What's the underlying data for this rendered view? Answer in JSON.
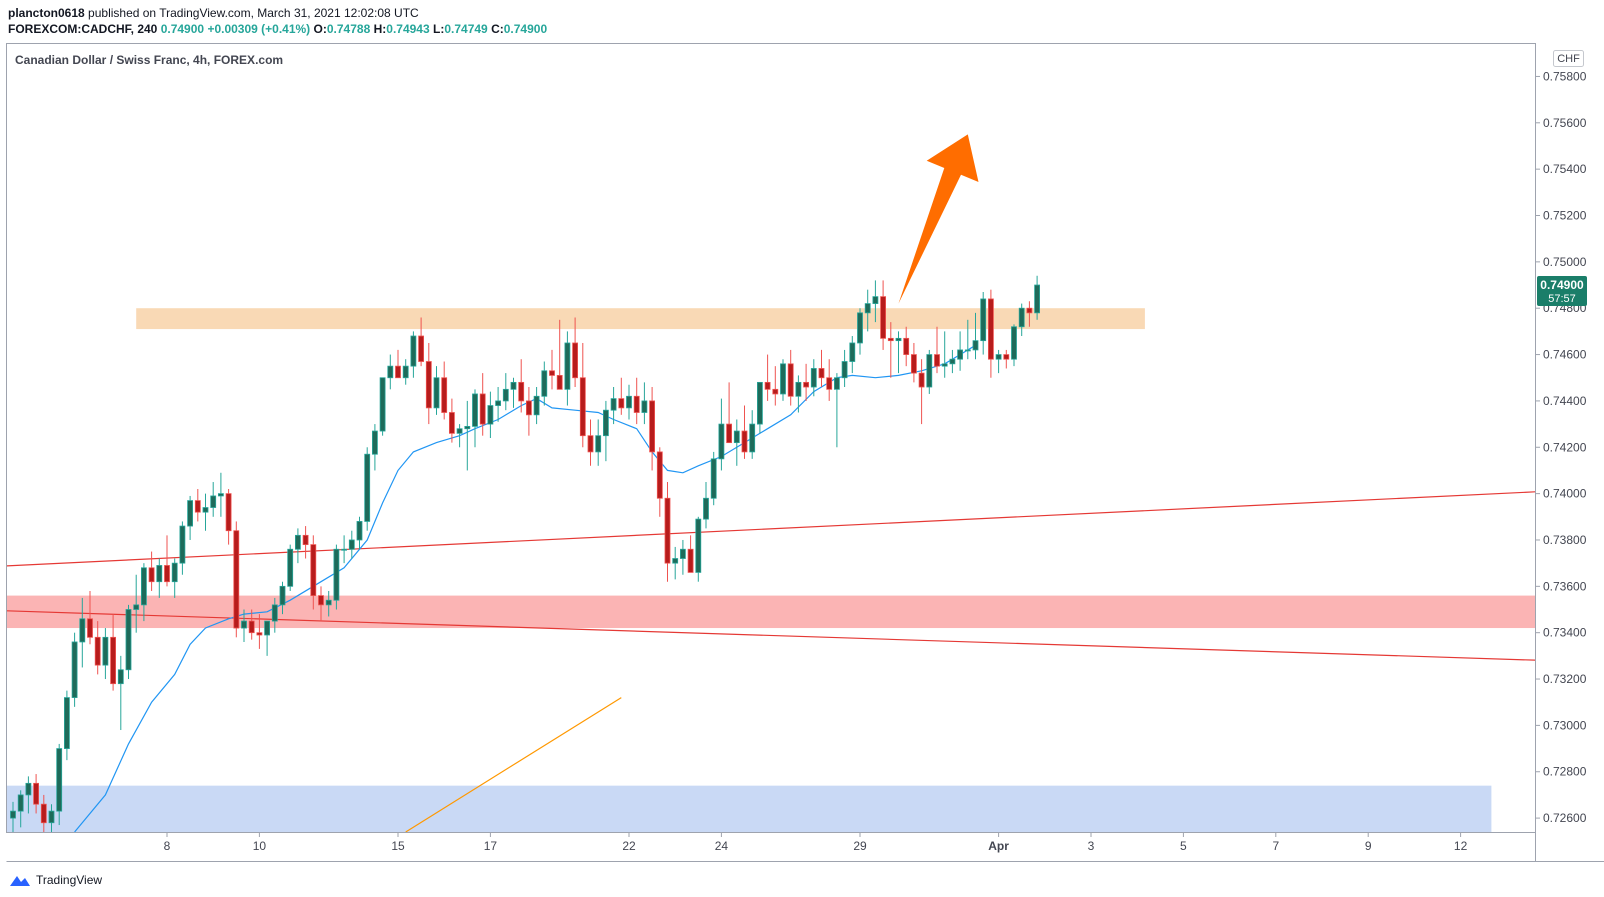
{
  "header": {
    "author": "plancton0618",
    "published_text": "published on TradingView.com, March 31, 2021 12:02:08 UTC",
    "symbol": "FOREXCOM:CADCHF, 240",
    "last": "0.74900",
    "change": "+0.00309 (+0.41%)",
    "o_label": "O:",
    "o_value": "0.74788",
    "h_label": "H:",
    "h_value": "0.74943",
    "l_label": "L:",
    "l_value": "0.74749",
    "c_label": "C:",
    "c_value": "0.74900"
  },
  "footer": {
    "brand": "TradingView"
  },
  "colors": {
    "up": "#26a69a",
    "down": "#ef5350",
    "candle_body_up": "#1e6b5a",
    "candle_body_down": "#b71c1c",
    "ma": "#2196f3",
    "resistance_zone": "#f9d9b5",
    "support_zone": "#fbb4b4",
    "demand_zone": "#c9d9f5",
    "trend_line": "#e53935",
    "orange_line": "#ff9800",
    "arrow": "#ff6d00",
    "price_badge": "#1a7e69"
  },
  "chart_data": {
    "type": "candlestick",
    "title": "Canadian Dollar / Swiss Franc, 4h, FOREX.com",
    "currency": "CHF",
    "ylim": [
      0.7254,
      0.7594
    ],
    "y_ticks": [
      "0.75800",
      "0.75600",
      "0.75400",
      "0.75200",
      "0.75000",
      "0.74800",
      "0.74600",
      "0.74400",
      "0.74200",
      "0.74000",
      "0.73800",
      "0.73600",
      "0.73400",
      "0.73200",
      "0.73000",
      "0.72800",
      "0.72600"
    ],
    "x_ticks": [
      {
        "label": "8",
        "bar": 20
      },
      {
        "label": "10",
        "bar": 32
      },
      {
        "label": "15",
        "bar": 50
      },
      {
        "label": "17",
        "bar": 62
      },
      {
        "label": "22",
        "bar": 80
      },
      {
        "label": "24",
        "bar": 92
      },
      {
        "label": "29",
        "bar": 110
      },
      {
        "label": "Apr",
        "bar": 128
      },
      {
        "label": "3",
        "bar": 140
      },
      {
        "label": "5",
        "bar": 152
      },
      {
        "label": "7",
        "bar": 164
      },
      {
        "label": "9",
        "bar": 176
      },
      {
        "label": "12",
        "bar": 188
      }
    ],
    "last_price": "0.74900",
    "countdown": "57:57",
    "candles": [
      [
        0.726,
        0.7267,
        0.7253,
        0.7263
      ],
      [
        0.7263,
        0.7272,
        0.7256,
        0.727
      ],
      [
        0.727,
        0.7278,
        0.7262,
        0.7275
      ],
      [
        0.7275,
        0.7279,
        0.7262,
        0.7266
      ],
      [
        0.7266,
        0.727,
        0.7254,
        0.7258
      ],
      [
        0.7258,
        0.7266,
        0.7254,
        0.7263
      ],
      [
        0.7263,
        0.7292,
        0.7257,
        0.729
      ],
      [
        0.729,
        0.7315,
        0.7285,
        0.7312
      ],
      [
        0.7312,
        0.734,
        0.7308,
        0.7336
      ],
      [
        0.7336,
        0.7355,
        0.7325,
        0.7346
      ],
      [
        0.7346,
        0.7358,
        0.7335,
        0.7338
      ],
      [
        0.7338,
        0.7345,
        0.7322,
        0.7326
      ],
      [
        0.7326,
        0.7342,
        0.732,
        0.7338
      ],
      [
        0.7338,
        0.7348,
        0.7315,
        0.7318
      ],
      [
        0.7318,
        0.733,
        0.7298,
        0.7324
      ],
      [
        0.7324,
        0.7352,
        0.732,
        0.735
      ],
      [
        0.735,
        0.7365,
        0.734,
        0.7352
      ],
      [
        0.7352,
        0.737,
        0.7345,
        0.7368
      ],
      [
        0.7368,
        0.7375,
        0.7358,
        0.7362
      ],
      [
        0.7362,
        0.7372,
        0.7355,
        0.7369
      ],
      [
        0.7369,
        0.7382,
        0.736,
        0.7362
      ],
      [
        0.7362,
        0.7372,
        0.7355,
        0.737
      ],
      [
        0.737,
        0.7388,
        0.7365,
        0.7386
      ],
      [
        0.7386,
        0.7399,
        0.738,
        0.7397
      ],
      [
        0.7397,
        0.7402,
        0.7388,
        0.7392
      ],
      [
        0.7392,
        0.74,
        0.7384,
        0.7394
      ],
      [
        0.7394,
        0.7405,
        0.739,
        0.7399
      ],
      [
        0.7399,
        0.7409,
        0.739,
        0.74
      ],
      [
        0.74,
        0.7402,
        0.7378,
        0.7384
      ],
      [
        0.7384,
        0.7388,
        0.7338,
        0.7342
      ],
      [
        0.7342,
        0.735,
        0.7336,
        0.7345
      ],
      [
        0.7345,
        0.735,
        0.7337,
        0.734
      ],
      [
        0.734,
        0.7348,
        0.7333,
        0.7339
      ],
      [
        0.7339,
        0.7345,
        0.733,
        0.7345
      ],
      [
        0.7345,
        0.7355,
        0.734,
        0.7352
      ],
      [
        0.7352,
        0.7362,
        0.7348,
        0.736
      ],
      [
        0.736,
        0.7378,
        0.7358,
        0.7376
      ],
      [
        0.7376,
        0.7385,
        0.737,
        0.7382
      ],
      [
        0.7382,
        0.7386,
        0.7372,
        0.7378
      ],
      [
        0.7378,
        0.7382,
        0.735,
        0.7356
      ],
      [
        0.7356,
        0.736,
        0.7345,
        0.7352
      ],
      [
        0.7352,
        0.7358,
        0.7347,
        0.7354
      ],
      [
        0.7354,
        0.7378,
        0.735,
        0.7376
      ],
      [
        0.7376,
        0.7382,
        0.737,
        0.7376
      ],
      [
        0.7376,
        0.7384,
        0.7372,
        0.738
      ],
      [
        0.738,
        0.739,
        0.7376,
        0.7388
      ],
      [
        0.7388,
        0.742,
        0.7384,
        0.7417
      ],
      [
        0.7417,
        0.743,
        0.741,
        0.7427
      ],
      [
        0.7427,
        0.745,
        0.7425,
        0.745
      ],
      [
        0.745,
        0.746,
        0.7445,
        0.7455
      ],
      [
        0.7455,
        0.7462,
        0.745,
        0.745
      ],
      [
        0.745,
        0.7458,
        0.7447,
        0.7455
      ],
      [
        0.7455,
        0.747,
        0.745,
        0.7468
      ],
      [
        0.7468,
        0.7476,
        0.7455,
        0.7457
      ],
      [
        0.7457,
        0.7465,
        0.743,
        0.7437
      ],
      [
        0.7437,
        0.7455,
        0.7434,
        0.745
      ],
      [
        0.745,
        0.7457,
        0.7432,
        0.7435
      ],
      [
        0.7435,
        0.7441,
        0.7422,
        0.7426
      ],
      [
        0.7426,
        0.743,
        0.742,
        0.7428
      ],
      [
        0.7428,
        0.744,
        0.741,
        0.7429
      ],
      [
        0.7429,
        0.7445,
        0.742,
        0.7443
      ],
      [
        0.7443,
        0.7452,
        0.7425,
        0.743
      ],
      [
        0.743,
        0.7444,
        0.7424,
        0.7438
      ],
      [
        0.7438,
        0.7446,
        0.7431,
        0.744
      ],
      [
        0.744,
        0.7452,
        0.7436,
        0.7445
      ],
      [
        0.7445,
        0.745,
        0.7437,
        0.7448
      ],
      [
        0.7448,
        0.7458,
        0.7435,
        0.744
      ],
      [
        0.744,
        0.7446,
        0.7425,
        0.7434
      ],
      [
        0.7434,
        0.7446,
        0.743,
        0.7442
      ],
      [
        0.7442,
        0.7457,
        0.7438,
        0.7453
      ],
      [
        0.7453,
        0.7462,
        0.7445,
        0.7451
      ],
      [
        0.7451,
        0.7475,
        0.7446,
        0.7445
      ],
      [
        0.7445,
        0.747,
        0.7438,
        0.7465
      ],
      [
        0.7465,
        0.7476,
        0.7446,
        0.745
      ],
      [
        0.745,
        0.7465,
        0.742,
        0.7425
      ],
      [
        0.7425,
        0.7432,
        0.7412,
        0.7418
      ],
      [
        0.7418,
        0.7432,
        0.7412,
        0.7425
      ],
      [
        0.7425,
        0.744,
        0.7414,
        0.7436
      ],
      [
        0.7436,
        0.7446,
        0.743,
        0.7441
      ],
      [
        0.7441,
        0.745,
        0.7434,
        0.7437
      ],
      [
        0.7437,
        0.7447,
        0.7432,
        0.7442
      ],
      [
        0.7442,
        0.745,
        0.743,
        0.7435
      ],
      [
        0.7435,
        0.7448,
        0.743,
        0.744
      ],
      [
        0.744,
        0.7446,
        0.741,
        0.7418
      ],
      [
        0.7418,
        0.742,
        0.739,
        0.7398
      ],
      [
        0.7398,
        0.7405,
        0.7362,
        0.737
      ],
      [
        0.737,
        0.7377,
        0.7363,
        0.7372
      ],
      [
        0.7372,
        0.738,
        0.7365,
        0.7376
      ],
      [
        0.7376,
        0.7382,
        0.7369,
        0.7366
      ],
      [
        0.7366,
        0.739,
        0.7362,
        0.7389
      ],
      [
        0.7389,
        0.7405,
        0.7385,
        0.7398
      ],
      [
        0.7398,
        0.7418,
        0.7395,
        0.7415
      ],
      [
        0.7415,
        0.7441,
        0.741,
        0.743
      ],
      [
        0.743,
        0.7448,
        0.7425,
        0.7422
      ],
      [
        0.7422,
        0.7432,
        0.7412,
        0.7427
      ],
      [
        0.7427,
        0.7438,
        0.7415,
        0.7418
      ],
      [
        0.7418,
        0.7436,
        0.7415,
        0.743
      ],
      [
        0.743,
        0.7448,
        0.7426,
        0.7448
      ],
      [
        0.7448,
        0.746,
        0.744,
        0.7445
      ],
      [
        0.7445,
        0.7455,
        0.7438,
        0.7443
      ],
      [
        0.7443,
        0.7458,
        0.744,
        0.7456
      ],
      [
        0.7456,
        0.7462,
        0.7438,
        0.7442
      ],
      [
        0.7442,
        0.7451,
        0.7435,
        0.7448
      ],
      [
        0.7448,
        0.7456,
        0.744,
        0.7446
      ],
      [
        0.7446,
        0.7458,
        0.7442,
        0.7454
      ],
      [
        0.7454,
        0.7462,
        0.7446,
        0.745
      ],
      [
        0.745,
        0.7458,
        0.744,
        0.7445
      ],
      [
        0.7445,
        0.7452,
        0.742,
        0.745
      ],
      [
        0.745,
        0.7462,
        0.7446,
        0.7457
      ],
      [
        0.7457,
        0.7468,
        0.7452,
        0.7465
      ],
      [
        0.7465,
        0.748,
        0.746,
        0.7478
      ],
      [
        0.7478,
        0.7488,
        0.747,
        0.7482
      ],
      [
        0.7482,
        0.7492,
        0.7474,
        0.7485
      ],
      [
        0.7485,
        0.7492,
        0.7462,
        0.7467
      ],
      [
        0.7467,
        0.7474,
        0.745,
        0.7466
      ],
      [
        0.7466,
        0.747,
        0.7452,
        0.7467
      ],
      [
        0.7467,
        0.7472,
        0.7455,
        0.746
      ],
      [
        0.746,
        0.7465,
        0.7448,
        0.7452
      ],
      [
        0.7452,
        0.7458,
        0.743,
        0.7446
      ],
      [
        0.7446,
        0.7462,
        0.7443,
        0.746
      ],
      [
        0.746,
        0.7472,
        0.7452,
        0.7455
      ],
      [
        0.7455,
        0.747,
        0.745,
        0.7456
      ],
      [
        0.7456,
        0.7462,
        0.7452,
        0.7458
      ],
      [
        0.7458,
        0.747,
        0.7453,
        0.7462
      ],
      [
        0.7462,
        0.7475,
        0.7458,
        0.7462
      ],
      [
        0.7462,
        0.7478,
        0.7458,
        0.7466
      ],
      [
        0.7466,
        0.7487,
        0.746,
        0.7484
      ],
      [
        0.7484,
        0.7488,
        0.745,
        0.7458
      ],
      [
        0.7458,
        0.7462,
        0.7452,
        0.746
      ],
      [
        0.746,
        0.7462,
        0.7454,
        0.7458
      ],
      [
        0.7458,
        0.7473,
        0.7455,
        0.7472
      ],
      [
        0.7472,
        0.7482,
        0.7468,
        0.748
      ],
      [
        0.748,
        0.7483,
        0.7472,
        0.7478
      ],
      [
        0.7478,
        0.7494,
        0.7475,
        0.749
      ]
    ],
    "moving_average": [
      [
        8,
        0.7254
      ],
      [
        12,
        0.727
      ],
      [
        15,
        0.7292
      ],
      [
        18,
        0.731
      ],
      [
        21,
        0.7322
      ],
      [
        23,
        0.7335
      ],
      [
        25,
        0.7342
      ],
      [
        28,
        0.7346
      ],
      [
        30,
        0.7348
      ],
      [
        33,
        0.7349
      ],
      [
        36,
        0.7354
      ],
      [
        40,
        0.7362
      ],
      [
        43,
        0.7368
      ],
      [
        46,
        0.738
      ],
      [
        48,
        0.7396
      ],
      [
        50,
        0.741
      ],
      [
        52,
        0.7418
      ],
      [
        55,
        0.7422
      ],
      [
        58,
        0.7425
      ],
      [
        60,
        0.7428
      ],
      [
        63,
        0.7432
      ],
      [
        66,
        0.7438
      ],
      [
        68,
        0.7441
      ],
      [
        70,
        0.7437
      ],
      [
        73,
        0.7436
      ],
      [
        76,
        0.7435
      ],
      [
        78,
        0.7432
      ],
      [
        81,
        0.7428
      ],
      [
        83,
        0.7418
      ],
      [
        85,
        0.741
      ],
      [
        87,
        0.7409
      ],
      [
        89,
        0.7412
      ],
      [
        92,
        0.7416
      ],
      [
        95,
        0.7422
      ],
      [
        98,
        0.7428
      ],
      [
        101,
        0.7434
      ],
      [
        104,
        0.7444
      ],
      [
        107,
        0.745
      ],
      [
        109,
        0.7451
      ],
      [
        112,
        0.745
      ],
      [
        115,
        0.7451
      ],
      [
        118,
        0.7453
      ],
      [
        121,
        0.7456
      ],
      [
        123,
        0.746
      ],
      [
        125,
        0.7464
      ]
    ],
    "zones": [
      {
        "name": "resistance",
        "from_bar": 16,
        "to_bar": 147,
        "y_low": 0.7471,
        "y_high": 0.748
      },
      {
        "name": "support",
        "from_bar": -6,
        "to_bar": 199,
        "y_low": 0.7342,
        "y_high": 0.7356
      },
      {
        "name": "demand",
        "from_bar": -6,
        "to_bar": 192,
        "y_low": 0.7254,
        "y_high": 0.7274
      }
    ],
    "lines": [
      {
        "name": "upper-trend-line",
        "from": [
          -6,
          0.7368
        ],
        "to": [
          199,
          0.7401
        ]
      },
      {
        "name": "lower-trend-line",
        "from": [
          -6,
          0.735
        ],
        "to": [
          199,
          0.7328
        ]
      },
      {
        "name": "orange-line",
        "from": [
          51,
          0.7254
        ],
        "to": [
          79,
          0.7312
        ]
      }
    ],
    "arrow": {
      "from": [
        115,
        0.7482
      ],
      "to": [
        124,
        0.7555
      ]
    }
  }
}
